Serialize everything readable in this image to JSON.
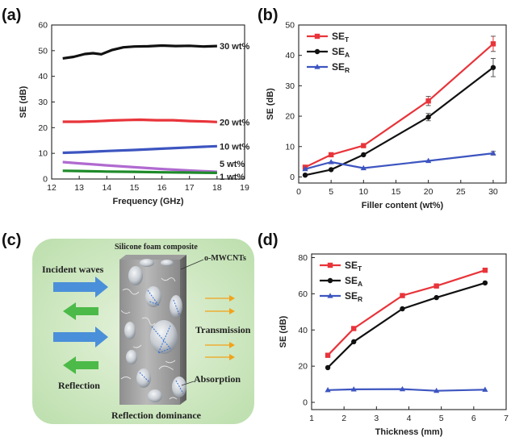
{
  "panels": {
    "a": "(a)",
    "b": "(b)",
    "c": "(c)",
    "d": "(d)"
  },
  "colors": {
    "black": "#111111",
    "red": "#e8343a",
    "blue": "#3d55c0",
    "violet": "#b06ad0",
    "green": "#1e8a2a",
    "panel_c_bg": "#cfe8c3",
    "arrow_blue": "#4a8fd9",
    "arrow_green": "#4cba48",
    "arrow_orange": "#f2a21a"
  },
  "chart_data": [
    {
      "id": "a",
      "type": "line",
      "xlabel": "Frequency (GHz)",
      "ylabel": "SE (dB)",
      "xlim": [
        12,
        19
      ],
      "ylim": [
        0,
        60
      ],
      "xticks": [
        12,
        13,
        14,
        15,
        16,
        17,
        18,
        19
      ],
      "yticks": [
        0,
        10,
        20,
        30,
        40,
        50,
        60
      ],
      "series": [
        {
          "name": "30 wt%",
          "color": "#111111",
          "x": [
            12.4,
            12.8,
            13.2,
            13.5,
            13.8,
            14.2,
            14.6,
            15.0,
            15.5,
            16.0,
            16.5,
            17.0,
            17.5,
            18.0
          ],
          "y": [
            47.0,
            47.6,
            48.7,
            49.0,
            48.6,
            50.3,
            51.3,
            51.6,
            51.7,
            52.0,
            51.8,
            51.9,
            51.6,
            51.8
          ]
        },
        {
          "name": "20 wt%",
          "color": "#e8343a",
          "x": [
            12.4,
            13.0,
            13.6,
            14.2,
            14.8,
            15.2,
            15.8,
            16.4,
            17.0,
            17.6,
            18.0
          ],
          "y": [
            22.3,
            22.3,
            22.5,
            22.8,
            23.0,
            23.1,
            22.9,
            22.9,
            22.6,
            22.4,
            22.2
          ]
        },
        {
          "name": "10 wt%",
          "color": "#3d55c0",
          "x": [
            12.4,
            13.0,
            14.0,
            15.0,
            16.0,
            17.0,
            18.0
          ],
          "y": [
            10.2,
            10.4,
            10.9,
            11.3,
            11.8,
            12.3,
            12.8
          ]
        },
        {
          "name": "5 wt%",
          "color": "#b06ad0",
          "x": [
            12.4,
            13.0,
            14.0,
            15.0,
            16.0,
            17.0,
            18.0
          ],
          "y": [
            6.6,
            6.1,
            5.3,
            4.6,
            3.9,
            3.3,
            2.8
          ]
        },
        {
          "name": "1 wt%",
          "color": "#1e8a2a",
          "x": [
            12.4,
            13.0,
            14.0,
            15.0,
            16.0,
            17.0,
            18.0
          ],
          "y": [
            3.2,
            3.1,
            2.9,
            2.8,
            2.6,
            2.5,
            2.4
          ]
        }
      ],
      "legend": "labels at line ends, right"
    },
    {
      "id": "b",
      "type": "line",
      "xlabel": "Filler content (wt%)",
      "ylabel": "SE (dB)",
      "xlim": [
        0,
        32
      ],
      "ylim": [
        -2,
        50
      ],
      "xticks": [
        0,
        5,
        10,
        15,
        20,
        25,
        30
      ],
      "yticks": [
        0,
        10,
        20,
        30,
        40,
        50
      ],
      "x": [
        1,
        5,
        10,
        20,
        30
      ],
      "series": [
        {
          "name": "SE",
          "sub": "T",
          "color": "#e8343a",
          "marker": "square",
          "y": [
            3.2,
            7.3,
            10.3,
            25.0,
            43.8
          ],
          "err": [
            0,
            0,
            0,
            1.5,
            2.5
          ]
        },
        {
          "name": "SE",
          "sub": "A",
          "color": "#111111",
          "marker": "circle",
          "y": [
            0.6,
            2.4,
            7.3,
            19.7,
            36.0
          ],
          "err": [
            0,
            0,
            0,
            1.2,
            3.0
          ]
        },
        {
          "name": "SE",
          "sub": "R",
          "color": "#3d55c0",
          "marker": "triangle",
          "y": [
            2.6,
            4.9,
            2.9,
            5.3,
            7.8
          ],
          "err": [
            0,
            0,
            0,
            0,
            0.6
          ]
        }
      ],
      "legend": "top-left"
    },
    {
      "id": "d",
      "type": "line",
      "xlabel": "Thickness (mm)",
      "ylabel": "SE (dB)",
      "xlim": [
        1,
        7
      ],
      "ylim": [
        -4,
        82
      ],
      "xticks": [
        1,
        2,
        3,
        4,
        5,
        6,
        7
      ],
      "yticks": [
        0,
        20,
        40,
        60,
        80
      ],
      "x": [
        1.5,
        2.3,
        3.8,
        4.85,
        6.35
      ],
      "series": [
        {
          "name": "SE",
          "sub": "T",
          "color": "#e8343a",
          "marker": "square",
          "y": [
            26.0,
            40.8,
            59.0,
            64.3,
            73.0
          ]
        },
        {
          "name": "SE",
          "sub": "A",
          "color": "#111111",
          "marker": "circle",
          "y": [
            19.2,
            33.5,
            51.7,
            57.9,
            66.0
          ]
        },
        {
          "name": "SE",
          "sub": "R",
          "color": "#3d55c0",
          "marker": "triangle",
          "y": [
            6.8,
            7.2,
            7.3,
            6.4,
            7.0
          ]
        }
      ],
      "legend": "top-left"
    }
  ],
  "diagram_c": {
    "title": "Silicone foam composite",
    "filler": "o-MWCNTs",
    "incident": "Incident waves",
    "reflection": "Reflection",
    "transmission": "Transmission",
    "absorption": "Absorption",
    "bottom": "Reflection dominance"
  }
}
